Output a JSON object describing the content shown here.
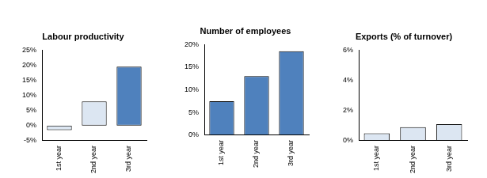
{
  "chart_data": [
    {
      "type": "bar",
      "title": "Labour productivity",
      "categories": [
        "1st year",
        "2nd year",
        "3rd year"
      ],
      "values": [
        -1.5,
        8,
        19.5
      ],
      "colors": [
        "#dce6f2",
        "#dce6f2",
        "#4f81bd"
      ],
      "ylim": [
        -5,
        25
      ],
      "yticks": [
        {
          "value": -5,
          "label": "-5%"
        },
        {
          "value": 0,
          "label": "0%"
        },
        {
          "value": 5,
          "label": "5%"
        },
        {
          "value": 10,
          "label": "10%"
        },
        {
          "value": 15,
          "label": "15%"
        },
        {
          "value": 20,
          "label": "20%"
        },
        {
          "value": 25,
          "label": "25%"
        }
      ],
      "grid": false
    },
    {
      "type": "bar",
      "title": "Number of employees",
      "categories": [
        "1st year",
        "2nd year",
        "3rd year"
      ],
      "values": [
        7.5,
        13,
        18.5
      ],
      "colors": [
        "#4f81bd",
        "#4f81bd",
        "#4f81bd"
      ],
      "ylim": [
        0,
        20
      ],
      "yticks": [
        {
          "value": 0,
          "label": "0%"
        },
        {
          "value": 5,
          "label": "5%"
        },
        {
          "value": 10,
          "label": "10%"
        },
        {
          "value": 15,
          "label": "15%"
        },
        {
          "value": 20,
          "label": "20%"
        }
      ],
      "grid": false
    },
    {
      "type": "bar",
      "title": "Exports (% of turnover)",
      "categories": [
        "1st year",
        "2nd year",
        "3rd year"
      ],
      "values": [
        0.5,
        0.9,
        1.1
      ],
      "colors": [
        "#dce6f2",
        "#dce6f2",
        "#dce6f2"
      ],
      "ylim": [
        0,
        6
      ],
      "yticks": [
        {
          "value": 0,
          "label": "0%"
        },
        {
          "value": 2,
          "label": "2%"
        },
        {
          "value": 4,
          "label": "4%"
        },
        {
          "value": 6,
          "label": "6%"
        }
      ],
      "grid": false
    }
  ]
}
